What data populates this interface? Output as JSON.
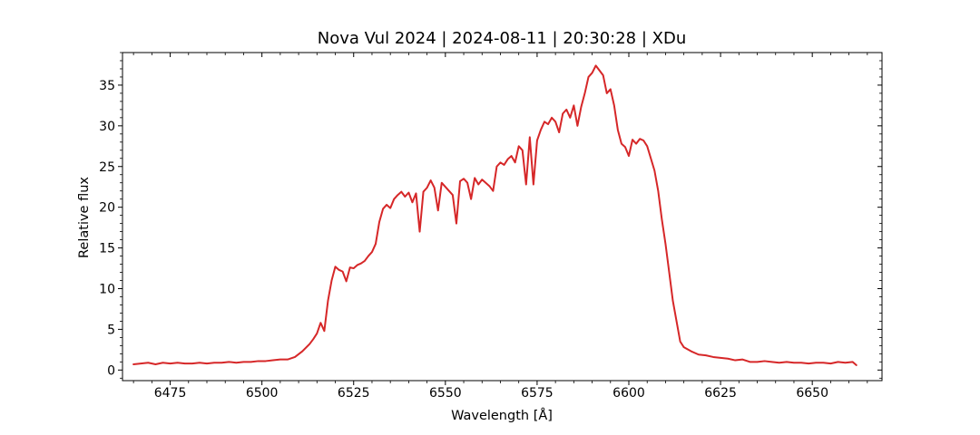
{
  "chart_data": {
    "type": "line",
    "title": "Nova Vul 2024 | 2024-08-11 | 20:30:28 | XDu",
    "xlabel": "Wavelength [Å]",
    "ylabel": "Relative flux",
    "xlim": [
      6462,
      6669
    ],
    "ylim": [
      -1.3,
      39.0
    ],
    "xticks": [
      6475,
      6500,
      6525,
      6550,
      6575,
      6600,
      6625,
      6650
    ],
    "yticks": [
      0,
      5,
      10,
      15,
      20,
      25,
      30,
      35
    ],
    "xminor_step": 5,
    "yminor_step": 1,
    "grid": false,
    "line_color": "#d62728",
    "series": [
      {
        "x": [
          6465,
          6467,
          6469,
          6471,
          6473,
          6475,
          6477,
          6479,
          6481,
          6483,
          6485,
          6487,
          6489,
          6491,
          6493,
          6495,
          6497,
          6499,
          6501,
          6503,
          6505,
          6507,
          6509,
          6511,
          6513,
          6514,
          6515,
          6516,
          6517,
          6518,
          6519,
          6520,
          6521,
          6522,
          6523,
          6524,
          6525,
          6526,
          6527,
          6528,
          6529,
          6530,
          6531,
          6532,
          6533,
          6534,
          6535,
          6536,
          6537,
          6538,
          6539,
          6540,
          6541,
          6542,
          6543,
          6544,
          6545,
          6546,
          6547,
          6548,
          6549,
          6550,
          6551,
          6552,
          6553,
          6554,
          6555,
          6556,
          6557,
          6558,
          6559,
          6560,
          6561,
          6562,
          6563,
          6564,
          6565,
          6566,
          6567,
          6568,
          6569,
          6570,
          6571,
          6572,
          6573,
          6574,
          6575,
          6576,
          6577,
          6578,
          6579,
          6580,
          6581,
          6582,
          6583,
          6584,
          6585,
          6586,
          6587,
          6588,
          6589,
          6590,
          6591,
          6592,
          6593,
          6594,
          6595,
          6596,
          6597,
          6598,
          6599,
          6600,
          6601,
          6602,
          6603,
          6604,
          6605,
          6606,
          6607,
          6608,
          6609,
          6610,
          6611,
          6612,
          6613,
          6614,
          6615,
          6617,
          6619,
          6621,
          6623,
          6625,
          6627,
          6629,
          6631,
          6633,
          6635,
          6637,
          6639,
          6641,
          6643,
          6645,
          6647,
          6649,
          6651,
          6653,
          6655,
          6657,
          6659,
          6661,
          6662
        ],
        "y": [
          0.7,
          0.8,
          0.9,
          0.7,
          0.9,
          0.8,
          0.9,
          0.8,
          0.8,
          0.9,
          0.8,
          0.9,
          0.9,
          1.0,
          0.9,
          1.0,
          1.0,
          1.1,
          1.1,
          1.2,
          1.3,
          1.3,
          1.6,
          2.3,
          3.2,
          3.8,
          4.5,
          5.8,
          4.8,
          8.5,
          11.0,
          12.7,
          12.3,
          12.1,
          10.9,
          12.6,
          12.5,
          12.9,
          13.1,
          13.4,
          14.0,
          14.5,
          15.5,
          18.2,
          19.8,
          20.3,
          19.9,
          21.0,
          21.5,
          21.9,
          21.3,
          21.8,
          20.6,
          21.7,
          17.0,
          21.9,
          22.4,
          23.3,
          22.4,
          19.6,
          23.0,
          22.5,
          22.0,
          21.5,
          18.0,
          23.2,
          23.5,
          23.0,
          21.0,
          23.6,
          22.8,
          23.4,
          23.0,
          22.6,
          22.0,
          25.0,
          25.5,
          25.2,
          25.9,
          26.3,
          25.5,
          27.5,
          27.0,
          22.8,
          28.6,
          22.8,
          28.2,
          29.5,
          30.5,
          30.2,
          31.0,
          30.5,
          29.2,
          31.5,
          32.0,
          31.0,
          32.5,
          30.0,
          32.3,
          34.0,
          36.0,
          36.5,
          37.4,
          36.8,
          36.2,
          34.0,
          34.5,
          32.5,
          29.5,
          27.8,
          27.4,
          26.3,
          28.3,
          27.8,
          28.4,
          28.2,
          27.5,
          26.0,
          24.5,
          22.0,
          18.5,
          15.5,
          12.0,
          8.5,
          6.0,
          3.5,
          2.8,
          2.3,
          1.9,
          1.8,
          1.6,
          1.5,
          1.4,
          1.2,
          1.3,
          1.0,
          1.0,
          1.1,
          1.0,
          0.9,
          1.0,
          0.9,
          0.9,
          0.8,
          0.9,
          0.9,
          0.8,
          1.0,
          0.9,
          1.0,
          0.6
        ]
      }
    ]
  }
}
